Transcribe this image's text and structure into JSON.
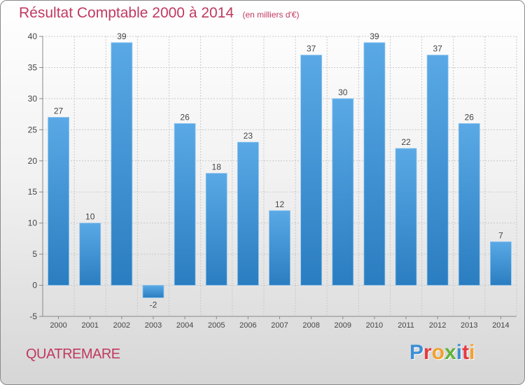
{
  "header": {
    "title": "Résultat Comptable 2000 à 2014",
    "unit": "(en milliers d'€)"
  },
  "footer": {
    "town": "QUATREMARE",
    "brand_letters": [
      {
        "ch": "P",
        "color": "#3b8fd6"
      },
      {
        "ch": "r",
        "color": "#e5393f"
      },
      {
        "ch": "o",
        "color": "#f2a12e"
      },
      {
        "ch": "x",
        "color": "#5fb33a"
      },
      {
        "ch": "i",
        "color": "#3b8fd6"
      },
      {
        "ch": "t",
        "color": "#e5393f"
      },
      {
        "ch": "i",
        "color": "#f2a12e"
      }
    ]
  },
  "colors": {
    "accent": "#c0395f",
    "bar_light": "#5aa9e6",
    "bar_dark": "#2a7dc0",
    "grid": "#c8c8c8"
  },
  "chart_data": {
    "type": "bar",
    "categories": [
      "2000",
      "2001",
      "2002",
      "2003",
      "2004",
      "2005",
      "2006",
      "2007",
      "2008",
      "2009",
      "2010",
      "2011",
      "2012",
      "2013",
      "2014"
    ],
    "values": [
      27,
      10,
      39,
      -2,
      26,
      18,
      23,
      12,
      37,
      30,
      39,
      22,
      37,
      26,
      7
    ],
    "ylim": [
      -5,
      40
    ],
    "yticks": [
      -5,
      0,
      5,
      10,
      15,
      20,
      25,
      30,
      35,
      40
    ],
    "grid": true,
    "data_labels": true
  }
}
